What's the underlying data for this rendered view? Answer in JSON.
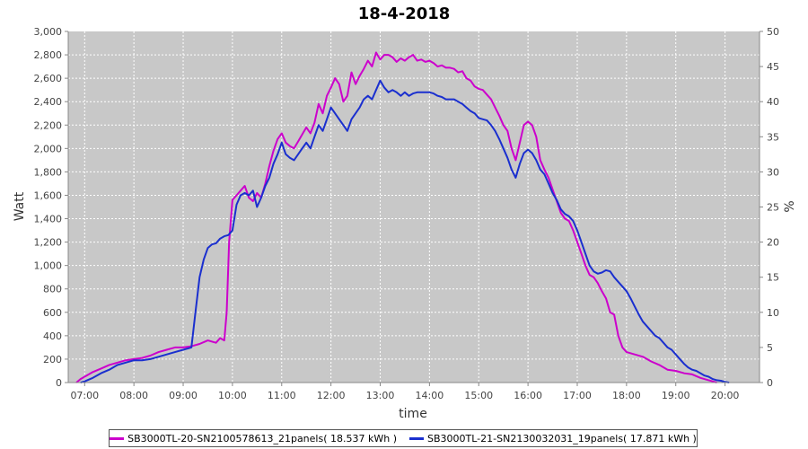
{
  "chart_data": {
    "type": "line",
    "title": "18-4-2018",
    "xlabel": "time",
    "ylabel": "Watt",
    "y2label": "%",
    "x_ticks": [
      "07:00",
      "08:00",
      "09:00",
      "10:00",
      "11:00",
      "12:00",
      "13:00",
      "14:00",
      "15:00",
      "16:00",
      "17:00",
      "18:00",
      "19:00",
      "20:00"
    ],
    "xlim": [
      "06:40",
      "20:42"
    ],
    "ylim": [
      0,
      3000
    ],
    "y_ticks": [
      "0",
      "200",
      "400",
      "600",
      "800",
      "1,000",
      "1,200",
      "1,400",
      "1,600",
      "1,800",
      "2,000",
      "2,200",
      "2,400",
      "2,600",
      "2,800",
      "3,000"
    ],
    "y2lim": [
      0,
      50
    ],
    "y2_ticks": [
      "0",
      "5",
      "10",
      "15",
      "20",
      "25",
      "30",
      "35",
      "40",
      "45",
      "50"
    ],
    "grid": true,
    "legend_position": "bottom",
    "series": [
      {
        "name": "SB3000TL-20-SN2100578613_21panels( 18.537 kWh )",
        "color": "#cc00cc",
        "points": [
          [
            "06:50",
            0
          ],
          [
            "06:55",
            30
          ],
          [
            "07:00",
            50
          ],
          [
            "07:10",
            90
          ],
          [
            "07:20",
            120
          ],
          [
            "07:30",
            150
          ],
          [
            "07:40",
            170
          ],
          [
            "07:50",
            190
          ],
          [
            "08:00",
            200
          ],
          [
            "08:10",
            210
          ],
          [
            "08:20",
            230
          ],
          [
            "08:30",
            260
          ],
          [
            "08:40",
            280
          ],
          [
            "08:50",
            300
          ],
          [
            "09:00",
            300
          ],
          [
            "09:10",
            310
          ],
          [
            "09:20",
            330
          ],
          [
            "09:30",
            360
          ],
          [
            "09:40",
            340
          ],
          [
            "09:45",
            380
          ],
          [
            "09:50",
            360
          ],
          [
            "09:53",
            600
          ],
          [
            "09:56",
            1200
          ],
          [
            "10:00",
            1560
          ],
          [
            "10:05",
            1600
          ],
          [
            "10:10",
            1640
          ],
          [
            "10:15",
            1680
          ],
          [
            "10:20",
            1580
          ],
          [
            "10:25",
            1550
          ],
          [
            "10:30",
            1620
          ],
          [
            "10:35",
            1580
          ],
          [
            "10:40",
            1700
          ],
          [
            "10:45",
            1850
          ],
          [
            "10:50",
            1980
          ],
          [
            "10:55",
            2080
          ],
          [
            "11:00",
            2130
          ],
          [
            "11:05",
            2050
          ],
          [
            "11:10",
            2020
          ],
          [
            "11:15",
            2000
          ],
          [
            "11:20",
            2060
          ],
          [
            "11:25",
            2120
          ],
          [
            "11:30",
            2180
          ],
          [
            "11:35",
            2130
          ],
          [
            "11:40",
            2220
          ],
          [
            "11:45",
            2380
          ],
          [
            "11:50",
            2300
          ],
          [
            "11:55",
            2450
          ],
          [
            "12:00",
            2520
          ],
          [
            "12:05",
            2600
          ],
          [
            "12:10",
            2550
          ],
          [
            "12:15",
            2400
          ],
          [
            "12:20",
            2450
          ],
          [
            "12:25",
            2650
          ],
          [
            "12:30",
            2550
          ],
          [
            "12:35",
            2620
          ],
          [
            "12:40",
            2680
          ],
          [
            "12:45",
            2750
          ],
          [
            "12:50",
            2700
          ],
          [
            "12:55",
            2820
          ],
          [
            "13:00",
            2760
          ],
          [
            "13:05",
            2800
          ],
          [
            "13:10",
            2800
          ],
          [
            "13:15",
            2780
          ],
          [
            "13:20",
            2740
          ],
          [
            "13:25",
            2770
          ],
          [
            "13:30",
            2750
          ],
          [
            "13:35",
            2780
          ],
          [
            "13:40",
            2800
          ],
          [
            "13:45",
            2750
          ],
          [
            "13:50",
            2760
          ],
          [
            "13:55",
            2740
          ],
          [
            "14:00",
            2750
          ],
          [
            "14:05",
            2730
          ],
          [
            "14:10",
            2700
          ],
          [
            "14:15",
            2710
          ],
          [
            "14:20",
            2690
          ],
          [
            "14:25",
            2690
          ],
          [
            "14:30",
            2680
          ],
          [
            "14:35",
            2650
          ],
          [
            "14:40",
            2660
          ],
          [
            "14:45",
            2600
          ],
          [
            "14:50",
            2580
          ],
          [
            "14:55",
            2530
          ],
          [
            "15:00",
            2510
          ],
          [
            "15:05",
            2500
          ],
          [
            "15:10",
            2460
          ],
          [
            "15:15",
            2420
          ],
          [
            "15:20",
            2350
          ],
          [
            "15:25",
            2280
          ],
          [
            "15:30",
            2200
          ],
          [
            "15:35",
            2150
          ],
          [
            "15:40",
            2000
          ],
          [
            "15:45",
            1900
          ],
          [
            "15:50",
            2050
          ],
          [
            "15:55",
            2200
          ],
          [
            "16:00",
            2230
          ],
          [
            "16:05",
            2200
          ],
          [
            "16:10",
            2100
          ],
          [
            "16:15",
            1900
          ],
          [
            "16:20",
            1820
          ],
          [
            "16:25",
            1750
          ],
          [
            "16:30",
            1650
          ],
          [
            "16:35",
            1550
          ],
          [
            "16:40",
            1450
          ],
          [
            "16:45",
            1400
          ],
          [
            "16:50",
            1380
          ],
          [
            "16:55",
            1300
          ],
          [
            "17:00",
            1200
          ],
          [
            "17:05",
            1100
          ],
          [
            "17:10",
            1000
          ],
          [
            "17:15",
            920
          ],
          [
            "17:20",
            900
          ],
          [
            "17:25",
            850
          ],
          [
            "17:30",
            780
          ],
          [
            "17:35",
            720
          ],
          [
            "17:40",
            600
          ],
          [
            "17:45",
            580
          ],
          [
            "17:50",
            400
          ],
          [
            "17:55",
            300
          ],
          [
            "18:00",
            260
          ],
          [
            "18:10",
            240
          ],
          [
            "18:20",
            220
          ],
          [
            "18:30",
            180
          ],
          [
            "18:40",
            150
          ],
          [
            "18:50",
            110
          ],
          [
            "19:00",
            100
          ],
          [
            "19:10",
            80
          ],
          [
            "19:20",
            70
          ],
          [
            "19:30",
            40
          ],
          [
            "19:40",
            20
          ],
          [
            "19:45",
            10
          ],
          [
            "19:50",
            0
          ]
        ]
      },
      {
        "name": "SB3000TL-21-SN2130032031_19panels( 17.871 kWh )",
        "color": "#1a2fcf",
        "points": [
          [
            "06:55",
            0
          ],
          [
            "07:00",
            10
          ],
          [
            "07:10",
            40
          ],
          [
            "07:20",
            80
          ],
          [
            "07:30",
            110
          ],
          [
            "07:40",
            150
          ],
          [
            "07:50",
            170
          ],
          [
            "08:00",
            190
          ],
          [
            "08:10",
            190
          ],
          [
            "08:20",
            200
          ],
          [
            "08:30",
            220
          ],
          [
            "08:40",
            240
          ],
          [
            "08:50",
            260
          ],
          [
            "09:00",
            280
          ],
          [
            "09:10",
            300
          ],
          [
            "09:15",
            600
          ],
          [
            "09:20",
            900
          ],
          [
            "09:25",
            1050
          ],
          [
            "09:30",
            1150
          ],
          [
            "09:35",
            1180
          ],
          [
            "09:40",
            1190
          ],
          [
            "09:45",
            1230
          ],
          [
            "09:50",
            1250
          ],
          [
            "09:55",
            1260
          ],
          [
            "10:00",
            1300
          ],
          [
            "10:05",
            1520
          ],
          [
            "10:10",
            1600
          ],
          [
            "10:15",
            1620
          ],
          [
            "10:20",
            1600
          ],
          [
            "10:25",
            1640
          ],
          [
            "10:30",
            1500
          ],
          [
            "10:35",
            1580
          ],
          [
            "10:40",
            1680
          ],
          [
            "10:45",
            1750
          ],
          [
            "10:50",
            1870
          ],
          [
            "10:55",
            1950
          ],
          [
            "11:00",
            2050
          ],
          [
            "11:05",
            1950
          ],
          [
            "11:10",
            1920
          ],
          [
            "11:15",
            1900
          ],
          [
            "11:20",
            1950
          ],
          [
            "11:25",
            2000
          ],
          [
            "11:30",
            2050
          ],
          [
            "11:35",
            2000
          ],
          [
            "11:40",
            2100
          ],
          [
            "11:45",
            2200
          ],
          [
            "11:50",
            2150
          ],
          [
            "11:55",
            2250
          ],
          [
            "12:00",
            2350
          ],
          [
            "12:05",
            2300
          ],
          [
            "12:10",
            2250
          ],
          [
            "12:15",
            2200
          ],
          [
            "12:20",
            2150
          ],
          [
            "12:25",
            2250
          ],
          [
            "12:30",
            2300
          ],
          [
            "12:35",
            2350
          ],
          [
            "12:40",
            2420
          ],
          [
            "12:45",
            2450
          ],
          [
            "12:50",
            2420
          ],
          [
            "12:55",
            2500
          ],
          [
            "13:00",
            2580
          ],
          [
            "13:05",
            2520
          ],
          [
            "13:10",
            2480
          ],
          [
            "13:15",
            2500
          ],
          [
            "13:20",
            2480
          ],
          [
            "13:25",
            2450
          ],
          [
            "13:30",
            2480
          ],
          [
            "13:35",
            2450
          ],
          [
            "13:40",
            2470
          ],
          [
            "13:45",
            2480
          ],
          [
            "13:50",
            2480
          ],
          [
            "13:55",
            2480
          ],
          [
            "14:00",
            2480
          ],
          [
            "14:05",
            2470
          ],
          [
            "14:10",
            2450
          ],
          [
            "14:15",
            2440
          ],
          [
            "14:20",
            2420
          ],
          [
            "14:25",
            2420
          ],
          [
            "14:30",
            2420
          ],
          [
            "14:35",
            2400
          ],
          [
            "14:40",
            2380
          ],
          [
            "14:45",
            2350
          ],
          [
            "14:50",
            2320
          ],
          [
            "14:55",
            2300
          ],
          [
            "15:00",
            2260
          ],
          [
            "15:05",
            2250
          ],
          [
            "15:10",
            2240
          ],
          [
            "15:15",
            2200
          ],
          [
            "15:20",
            2150
          ],
          [
            "15:25",
            2080
          ],
          [
            "15:30",
            2000
          ],
          [
            "15:35",
            1920
          ],
          [
            "15:40",
            1820
          ],
          [
            "15:45",
            1750
          ],
          [
            "15:50",
            1870
          ],
          [
            "15:55",
            1960
          ],
          [
            "16:00",
            1990
          ],
          [
            "16:05",
            1960
          ],
          [
            "16:10",
            1900
          ],
          [
            "16:15",
            1820
          ],
          [
            "16:20",
            1780
          ],
          [
            "16:25",
            1700
          ],
          [
            "16:30",
            1620
          ],
          [
            "16:35",
            1560
          ],
          [
            "16:40",
            1480
          ],
          [
            "16:45",
            1440
          ],
          [
            "16:50",
            1420
          ],
          [
            "16:55",
            1380
          ],
          [
            "17:00",
            1300
          ],
          [
            "17:05",
            1200
          ],
          [
            "17:10",
            1100
          ],
          [
            "17:15",
            1000
          ],
          [
            "17:20",
            950
          ],
          [
            "17:25",
            930
          ],
          [
            "17:30",
            940
          ],
          [
            "17:35",
            960
          ],
          [
            "17:40",
            950
          ],
          [
            "17:45",
            900
          ],
          [
            "17:50",
            860
          ],
          [
            "17:55",
            820
          ],
          [
            "18:00",
            780
          ],
          [
            "18:05",
            720
          ],
          [
            "18:10",
            650
          ],
          [
            "18:15",
            580
          ],
          [
            "18:20",
            520
          ],
          [
            "18:25",
            480
          ],
          [
            "18:30",
            440
          ],
          [
            "18:35",
            400
          ],
          [
            "18:40",
            380
          ],
          [
            "18:45",
            340
          ],
          [
            "18:50",
            300
          ],
          [
            "18:55",
            280
          ],
          [
            "19:00",
            240
          ],
          [
            "19:05",
            200
          ],
          [
            "19:10",
            160
          ],
          [
            "19:15",
            130
          ],
          [
            "19:20",
            110
          ],
          [
            "19:25",
            100
          ],
          [
            "19:30",
            80
          ],
          [
            "19:35",
            60
          ],
          [
            "19:40",
            50
          ],
          [
            "19:45",
            30
          ],
          [
            "19:50",
            20
          ],
          [
            "19:55",
            15
          ],
          [
            "20:00",
            5
          ],
          [
            "20:05",
            0
          ]
        ]
      }
    ]
  }
}
